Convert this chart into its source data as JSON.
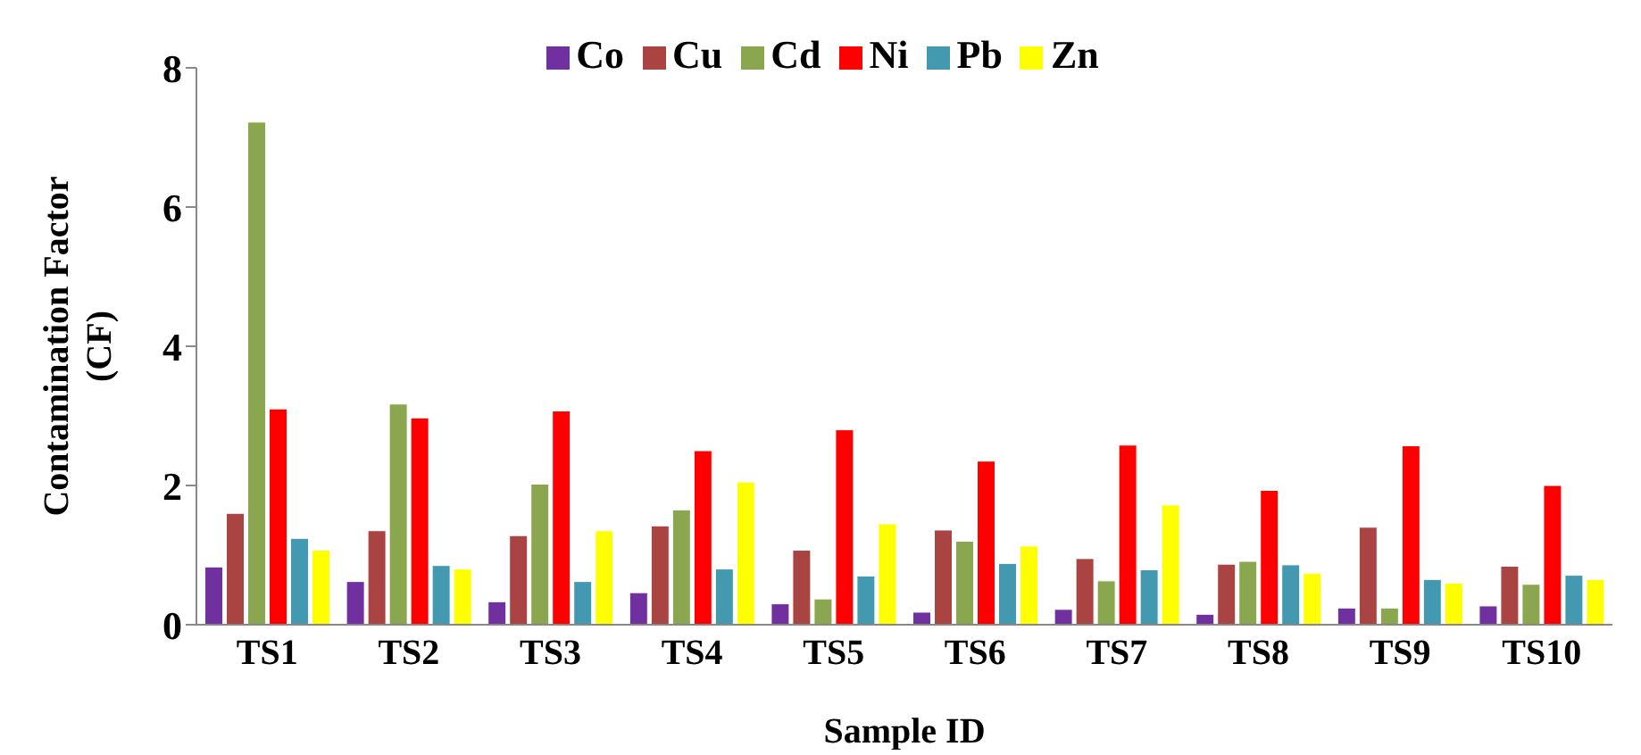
{
  "chart_data": {
    "type": "bar",
    "xlabel": "Sample ID",
    "ylabel": "Contamination Factor (CF)",
    "categories": [
      "TS1",
      "TS2",
      "TS3",
      "TS4",
      "TS5",
      "TS6",
      "TS7",
      "TS8",
      "TS9",
      "TS10"
    ],
    "series": [
      {
        "name": "Co",
        "color": "#7030a0",
        "values": [
          0.83,
          0.62,
          0.33,
          0.46,
          0.3,
          0.18,
          0.22,
          0.15,
          0.24,
          0.27
        ]
      },
      {
        "name": "Cu",
        "color": "#a94442",
        "values": [
          1.6,
          1.35,
          1.28,
          1.42,
          1.07,
          1.36,
          0.95,
          0.87,
          1.4,
          0.84
        ]
      },
      {
        "name": "Cd",
        "color": "#8aa64e",
        "values": [
          7.22,
          3.17,
          2.02,
          1.65,
          0.37,
          1.2,
          0.63,
          0.91,
          0.24,
          0.58
        ]
      },
      {
        "name": "Ni",
        "color": "#ff0000",
        "values": [
          3.1,
          2.97,
          3.07,
          2.5,
          2.8,
          2.35,
          2.58,
          1.93,
          2.57,
          2.0
        ]
      },
      {
        "name": "Pb",
        "color": "#4299b0",
        "values": [
          1.24,
          0.85,
          0.62,
          0.8,
          0.7,
          0.88,
          0.79,
          0.86,
          0.65,
          0.71
        ]
      },
      {
        "name": "Zn",
        "color": "#ffff00",
        "values": [
          1.07,
          0.8,
          1.35,
          2.05,
          1.45,
          1.13,
          1.72,
          0.74,
          0.6,
          0.65
        ]
      }
    ],
    "ylim": [
      0,
      8
    ],
    "yticks": [
      0,
      2,
      4,
      6,
      8
    ],
    "grid": false,
    "legend": "top"
  }
}
